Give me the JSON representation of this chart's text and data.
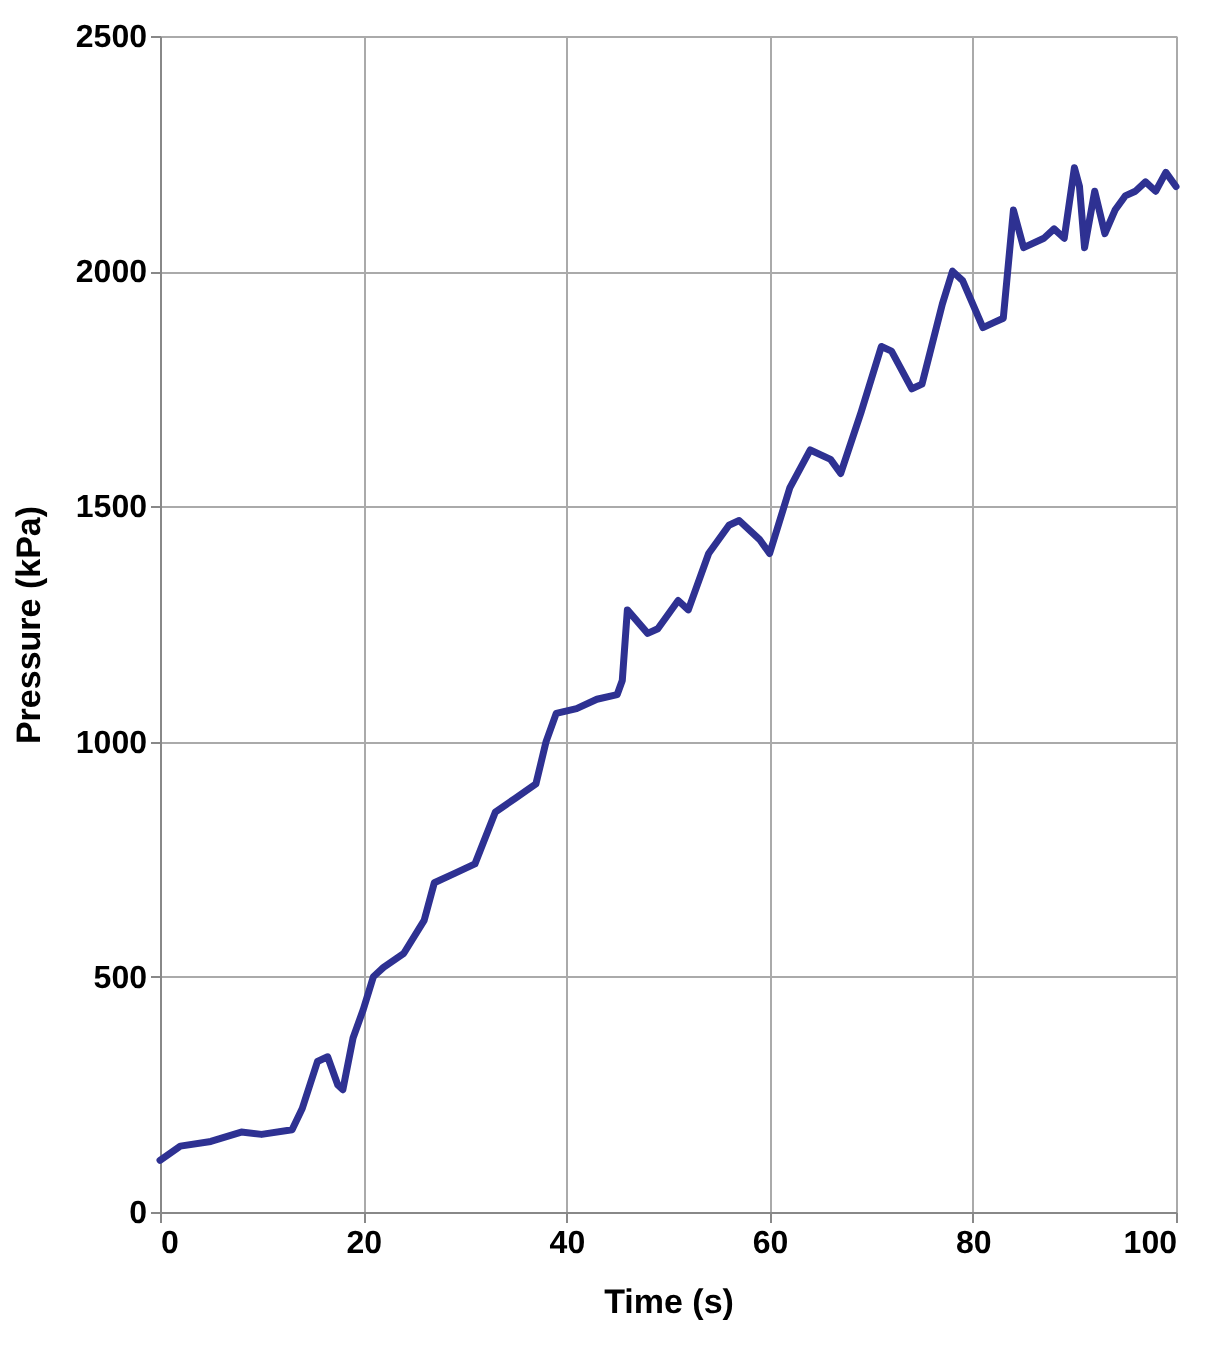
{
  "chart_data": {
    "type": "line",
    "xlabel": "Time (s)",
    "ylabel": "Pressure  (kPa)",
    "x": [
      0,
      2,
      5,
      8,
      10,
      13,
      14,
      15.5,
      16.5,
      17.5,
      18,
      19,
      20,
      21,
      22,
      24,
      26,
      27,
      29,
      31,
      33,
      35,
      37,
      38,
      39,
      41,
      43,
      45,
      45.5,
      46,
      48,
      49,
      51,
      52,
      54,
      56,
      57,
      59,
      60,
      62,
      64,
      66,
      67,
      69,
      71,
      72,
      74,
      75,
      77,
      78,
      79,
      81,
      82,
      83,
      84,
      85,
      87,
      88,
      89,
      90,
      90.5,
      91,
      92,
      93,
      94,
      95,
      96,
      97,
      98,
      99,
      100
    ],
    "series": [
      {
        "color": "#2e3192",
        "values": [
          110,
          140,
          150,
          170,
          165,
          175,
          220,
          320,
          330,
          270,
          260,
          370,
          430,
          500,
          520,
          550,
          620,
          700,
          720,
          740,
          850,
          880,
          910,
          1000,
          1060,
          1070,
          1090,
          1100,
          1130,
          1280,
          1230,
          1240,
          1300,
          1280,
          1400,
          1460,
          1470,
          1430,
          1400,
          1540,
          1620,
          1600,
          1570,
          1700,
          1840,
          1830,
          1750,
          1760,
          1930,
          2000,
          1980,
          1880,
          1890,
          1900,
          2130,
          2050,
          2070,
          2090,
          2070,
          2220,
          2180,
          2050,
          2170,
          2080,
          2130,
          2160,
          2170,
          2190,
          2170,
          2210,
          2180
        ]
      }
    ],
    "xlim": [
      0,
      100
    ],
    "xticks": [
      0,
      20,
      40,
      60,
      80,
      100
    ],
    "ylim": [
      0,
      2500
    ],
    "yticks": [
      0,
      500,
      1000,
      1500,
      2000,
      2500
    ],
    "grid": true,
    "marker": "none",
    "line_style": "solid"
  }
}
